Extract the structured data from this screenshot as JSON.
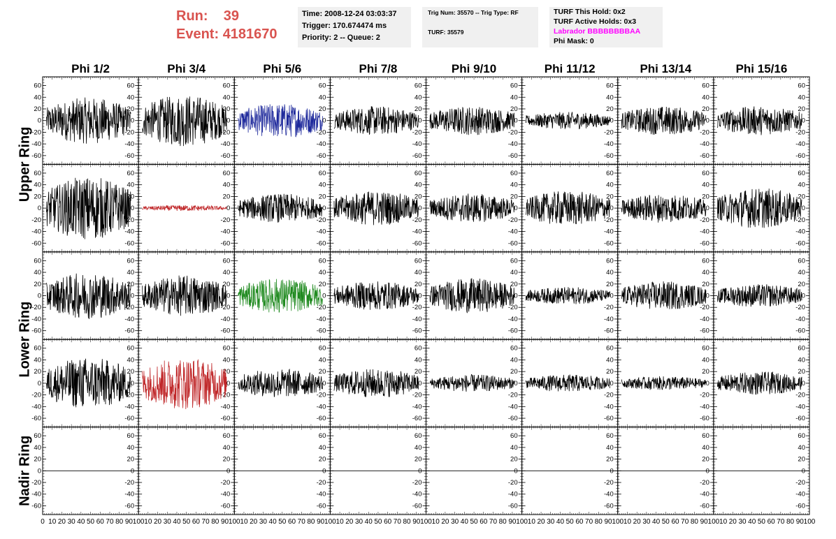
{
  "header": {
    "run_label": "Run:",
    "run_value": "39",
    "event_label": "Event:",
    "event_value": "4181670",
    "time": "Time: 2008-12-24 03:03:37",
    "trigger": "Trigger: 170.674474 ms",
    "priority": "Priority: 2 -- Queue: 2",
    "trig_num": "Trig Num: 35570 -- Trig Type: RF",
    "turf": "TURF: 35579",
    "turf_this_hold": "TURF This Hold: 0x2",
    "turf_active_holds": "TURF Active Holds: 0x3",
    "labrador": "Labrador BBBBBBBBAA",
    "phi_mask": "Phi Mask: 0"
  },
  "colors": {
    "run_text": "#d9534f",
    "labrador_text": "#ff00ff",
    "info_bg": "#f0f0f0",
    "trace_default": "#000000",
    "trace_blue": "#1f2a9c",
    "trace_red": "#c0282a",
    "trace_green": "#1f8a1f"
  },
  "chart_data": {
    "type": "line",
    "columns": [
      "Phi 1/2",
      "Phi 3/4",
      "Phi 5/6",
      "Phi 7/8",
      "Phi 9/10",
      "Phi 11/12",
      "Phi 13/14",
      "Phi 15/16"
    ],
    "rows": [
      "Upper Ring",
      "Lower Ring",
      "Nadir Ring"
    ],
    "sub_rows": 5,
    "xlim": [
      0,
      100
    ],
    "ylim": [
      -75,
      75
    ],
    "x_ticks": [
      0,
      10,
      20,
      30,
      40,
      50,
      60,
      70,
      80,
      90,
      100
    ],
    "y_ticks": [
      60,
      40,
      20,
      0,
      -20,
      -40,
      -60
    ],
    "panels": [
      [
        {
          "amp": 40,
          "color": "black"
        },
        {
          "amp": 45,
          "color": "black"
        },
        {
          "amp": 30,
          "color": "blue"
        },
        {
          "amp": 25,
          "color": "black"
        },
        {
          "amp": 25,
          "color": "black"
        },
        {
          "amp": 15,
          "color": "black"
        },
        {
          "amp": 25,
          "color": "black"
        },
        {
          "amp": 25,
          "color": "black"
        }
      ],
      [
        {
          "amp": 55,
          "color": "black"
        },
        {
          "amp": 5,
          "color": "red"
        },
        {
          "amp": 25,
          "color": "black"
        },
        {
          "amp": 30,
          "color": "black"
        },
        {
          "amp": 25,
          "color": "black"
        },
        {
          "amp": 30,
          "color": "black"
        },
        {
          "amp": 25,
          "color": "black"
        },
        {
          "amp": 35,
          "color": "black"
        }
      ],
      [
        {
          "amp": 40,
          "color": "black"
        },
        {
          "amp": 35,
          "color": "black"
        },
        {
          "amp": 30,
          "color": "green"
        },
        {
          "amp": 25,
          "color": "black"
        },
        {
          "amp": 30,
          "color": "black"
        },
        {
          "amp": 15,
          "color": "black"
        },
        {
          "amp": 25,
          "color": "black"
        },
        {
          "amp": 20,
          "color": "black"
        }
      ],
      [
        {
          "amp": 45,
          "color": "black"
        },
        {
          "amp": 45,
          "color": "red"
        },
        {
          "amp": 25,
          "color": "black"
        },
        {
          "amp": 25,
          "color": "black"
        },
        {
          "amp": 15,
          "color": "black"
        },
        {
          "amp": 15,
          "color": "black"
        },
        {
          "amp": 12,
          "color": "black"
        },
        {
          "amp": 20,
          "color": "black"
        }
      ],
      [
        {
          "amp": 0,
          "color": "black"
        },
        {
          "amp": 0,
          "color": "black"
        },
        {
          "amp": 0,
          "color": "black"
        },
        {
          "amp": 0,
          "color": "black"
        },
        {
          "amp": 0,
          "color": "black"
        },
        {
          "amp": 0,
          "color": "black"
        },
        {
          "amp": 0,
          "color": "black"
        },
        {
          "amp": 0,
          "color": "black"
        }
      ]
    ]
  }
}
